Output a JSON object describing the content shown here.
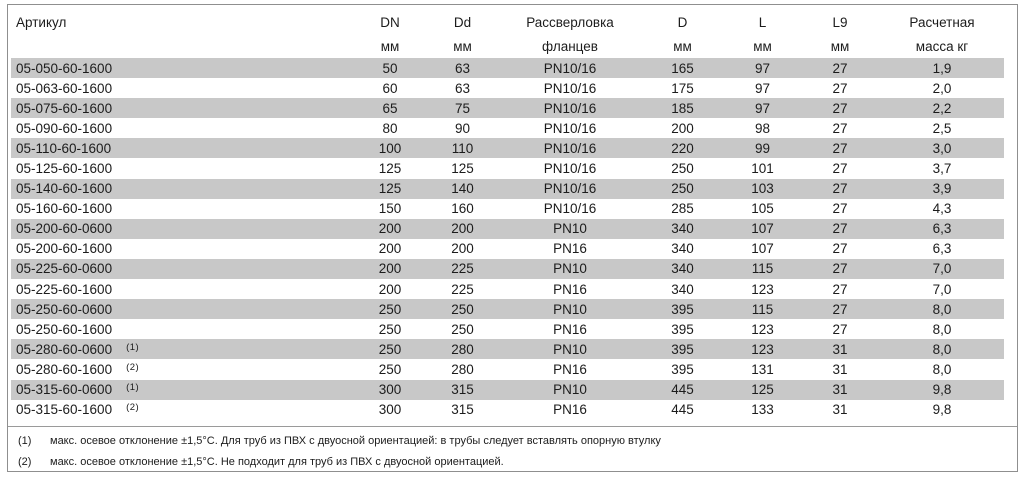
{
  "table": {
    "columns": [
      {
        "label": "Артикул",
        "unit": ""
      },
      {
        "label": "DN",
        "unit": "мм"
      },
      {
        "label": "Dd",
        "unit": "мм"
      },
      {
        "label": "Рассверловка",
        "unit": "фланцев"
      },
      {
        "label": "D",
        "unit": "мм"
      },
      {
        "label": "L",
        "unit": "мм"
      },
      {
        "label": "L9",
        "unit": "мм"
      },
      {
        "label": "Расчетная",
        "unit": "масса кг"
      }
    ],
    "rows": [
      {
        "article": "05-050-60-1600",
        "note": "",
        "dn": "50",
        "dd": "63",
        "pn": "PN10/16",
        "d": "165",
        "l": "97",
        "l9": "27",
        "mass": "1,9"
      },
      {
        "article": "05-063-60-1600",
        "note": "",
        "dn": "60",
        "dd": "63",
        "pn": "PN10/16",
        "d": "175",
        "l": "97",
        "l9": "27",
        "mass": "2,0"
      },
      {
        "article": "05-075-60-1600",
        "note": "",
        "dn": "65",
        "dd": "75",
        "pn": "PN10/16",
        "d": "185",
        "l": "97",
        "l9": "27",
        "mass": "2,2"
      },
      {
        "article": "05-090-60-1600",
        "note": "",
        "dn": "80",
        "dd": "90",
        "pn": "PN10/16",
        "d": "200",
        "l": "98",
        "l9": "27",
        "mass": "2,5"
      },
      {
        "article": "05-110-60-1600",
        "note": "",
        "dn": "100",
        "dd": "110",
        "pn": "PN10/16",
        "d": "220",
        "l": "99",
        "l9": "27",
        "mass": "3,0"
      },
      {
        "article": "05-125-60-1600",
        "note": "",
        "dn": "125",
        "dd": "125",
        "pn": "PN10/16",
        "d": "250",
        "l": "101",
        "l9": "27",
        "mass": "3,7"
      },
      {
        "article": "05-140-60-1600",
        "note": "",
        "dn": "125",
        "dd": "140",
        "pn": "PN10/16",
        "d": "250",
        "l": "103",
        "l9": "27",
        "mass": "3,9"
      },
      {
        "article": "05-160-60-1600",
        "note": "",
        "dn": "150",
        "dd": "160",
        "pn": "PN10/16",
        "d": "285",
        "l": "105",
        "l9": "27",
        "mass": "4,3"
      },
      {
        "article": "05-200-60-0600",
        "note": "",
        "dn": "200",
        "dd": "200",
        "pn": "PN10",
        "d": "340",
        "l": "107",
        "l9": "27",
        "mass": "6,3"
      },
      {
        "article": "05-200-60-1600",
        "note": "",
        "dn": "200",
        "dd": "200",
        "pn": "PN16",
        "d": "340",
        "l": "107",
        "l9": "27",
        "mass": "6,3"
      },
      {
        "article": "05-225-60-0600",
        "note": "",
        "dn": "200",
        "dd": "225",
        "pn": "PN10",
        "d": "340",
        "l": "115",
        "l9": "27",
        "mass": "7,0"
      },
      {
        "article": "05-225-60-1600",
        "note": "",
        "dn": "200",
        "dd": "225",
        "pn": "PN16",
        "d": "340",
        "l": "123",
        "l9": "27",
        "mass": "7,0"
      },
      {
        "article": "05-250-60-0600",
        "note": "",
        "dn": "250",
        "dd": "250",
        "pn": "PN10",
        "d": "395",
        "l": "115",
        "l9": "27",
        "mass": "8,0"
      },
      {
        "article": "05-250-60-1600",
        "note": "",
        "dn": "250",
        "dd": "250",
        "pn": "PN16",
        "d": "395",
        "l": "123",
        "l9": "27",
        "mass": "8,0"
      },
      {
        "article": "05-280-60-0600",
        "note": "(1)",
        "dn": "250",
        "dd": "280",
        "pn": "PN10",
        "d": "395",
        "l": "123",
        "l9": "31",
        "mass": "8,0"
      },
      {
        "article": "05-280-60-1600",
        "note": "(2)",
        "dn": "250",
        "dd": "280",
        "pn": "PN16",
        "d": "395",
        "l": "131",
        "l9": "31",
        "mass": "8,0"
      },
      {
        "article": "05-315-60-0600",
        "note": "(1)",
        "dn": "300",
        "dd": "315",
        "pn": "PN10",
        "d": "445",
        "l": "125",
        "l9": "31",
        "mass": "9,8"
      },
      {
        "article": "05-315-60-1600",
        "note": "(2)",
        "dn": "300",
        "dd": "315",
        "pn": "PN16",
        "d": "445",
        "l": "133",
        "l9": "31",
        "mass": "9,8"
      }
    ],
    "footnotes": [
      {
        "marker": "(1)",
        "text": "макс. осевое отклонение ±1,5°C. Для труб из ПВХ с двуосной ориентацией: в трубы следует вставлять опорную втулку"
      },
      {
        "marker": "(2)",
        "text": "макс. осевое отклонение ±1,5°C. Не подходит для труб из ПВХ с двуосной ориентацией."
      }
    ],
    "colors": {
      "stripe": "#c8c8c8",
      "border": "#8f8f8f",
      "text": "#1c1c1c"
    }
  }
}
